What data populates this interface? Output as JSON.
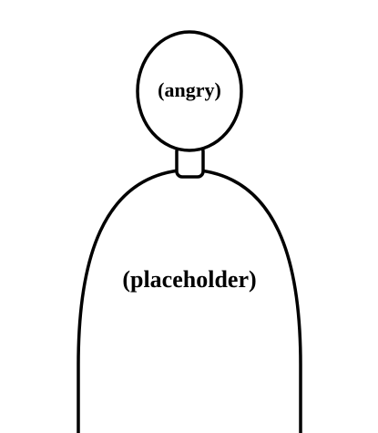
{
  "figure": {
    "head": {
      "label": "(angry)"
    },
    "body": {
      "label": "(placeholder)"
    },
    "colors": {
      "stroke": "#000000",
      "background": "#ffffff"
    }
  }
}
